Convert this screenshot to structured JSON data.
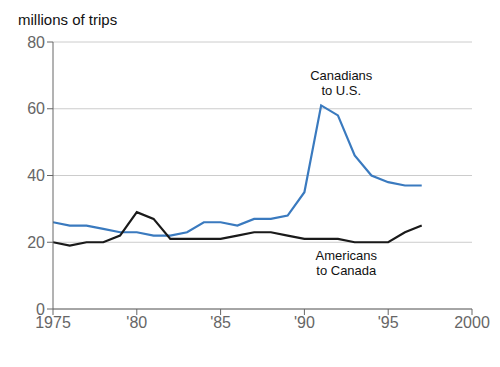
{
  "chart_data": {
    "type": "line",
    "title": "millions of trips",
    "x": [
      1975,
      1976,
      1977,
      1978,
      1979,
      1980,
      1981,
      1982,
      1983,
      1984,
      1985,
      1986,
      1987,
      1988,
      1989,
      1990,
      1991,
      1992,
      1993,
      1994,
      1995,
      1996,
      1997
    ],
    "series": [
      {
        "name": "Canadians\nto U.S.",
        "color": "#3a7abf",
        "values": [
          26,
          25,
          25,
          24,
          23,
          23,
          22,
          22,
          23,
          26,
          26,
          25,
          27,
          27,
          28,
          35,
          61,
          58,
          46,
          40,
          38,
          37,
          37
        ]
      },
      {
        "name": "Americans\nto Canada",
        "color": "#1a1a1a",
        "values": [
          20,
          19,
          20,
          20,
          22,
          29,
          27,
          21,
          21,
          21,
          21,
          22,
          23,
          23,
          22,
          21,
          21,
          21,
          20,
          20,
          20,
          23,
          25
        ]
      }
    ],
    "annotations": [
      {
        "text": "Canadians\nto U.S.",
        "x": 1992.2,
        "y": 63
      },
      {
        "text": "Americans\nto Canada",
        "x": 1992.5,
        "y": 9
      }
    ],
    "xlim": [
      1975,
      2000
    ],
    "ylim": [
      0,
      80
    ],
    "xticks": [
      1975,
      {
        "value": 1980,
        "label": "'80"
      },
      {
        "value": 1985,
        "label": "'85"
      },
      {
        "value": 1990,
        "label": "'90"
      },
      {
        "value": 1995,
        "label": "'95"
      },
      2000
    ],
    "yticks": [
      0,
      20,
      40,
      60,
      80
    ],
    "grid": true
  }
}
